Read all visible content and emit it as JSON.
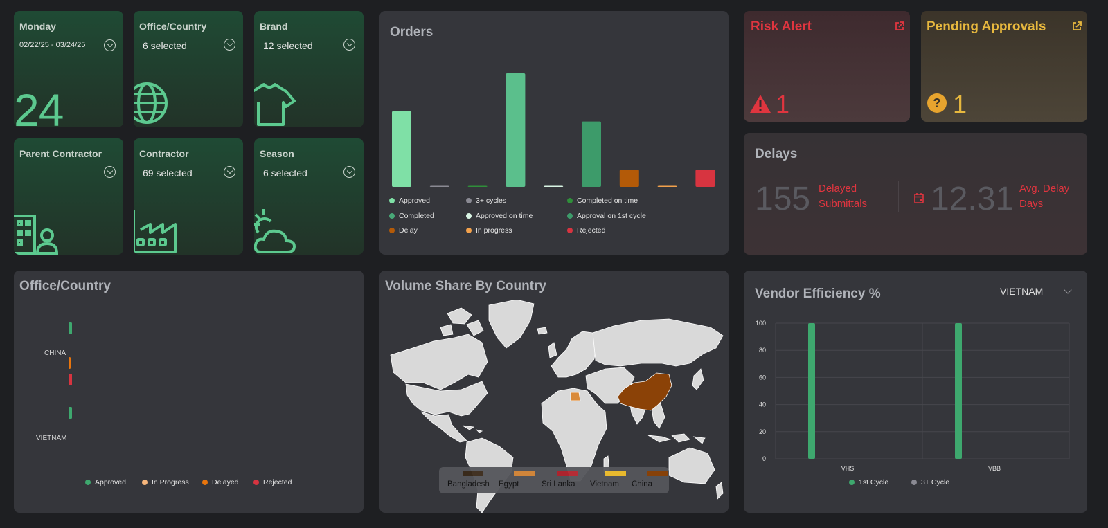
{
  "filters": {
    "date": {
      "title": "Monday",
      "value": "02/22/25 - 03/24/25",
      "big_number": "24"
    },
    "office": {
      "title": "Office/Country",
      "value": "6 selected"
    },
    "brand": {
      "title": "Brand",
      "value": "12 selected"
    },
    "parent": {
      "title": "Parent Contractor",
      "value": ""
    },
    "contractor": {
      "title": "Contractor",
      "value": "69 selected"
    },
    "season": {
      "title": "Season",
      "value": "6 selected"
    }
  },
  "orders": {
    "title": "Orders",
    "legend": [
      {
        "label": "Approved",
        "color": "#7fe0a6"
      },
      {
        "label": "3+ cycles",
        "color": "#8a8a93"
      },
      {
        "label": "Completed on time",
        "color": "#2f8f3a"
      },
      {
        "label": "Completed",
        "color": "#48a877"
      },
      {
        "label": "Approved on time",
        "color": "#d9f5e4"
      },
      {
        "label": "Approval on 1st cycle",
        "color": "#3d9b6a"
      },
      {
        "label": "Delay",
        "color": "#b35a08"
      },
      {
        "label": "In progress",
        "color": "#f2a14c"
      },
      {
        "label": "Rejected",
        "color": "#d73440"
      }
    ]
  },
  "risk_alert": {
    "title": "Risk Alert",
    "count": "1",
    "color": "#e0353f"
  },
  "pending_approvals": {
    "title": "Pending Approvals",
    "count": "1",
    "color": "#e7b83e"
  },
  "delays": {
    "title": "Delays",
    "submittals_value": "155",
    "submittals_label_1": "Delayed",
    "submittals_label_2": "Submittals",
    "avg_value": "12.31",
    "avg_label_1": "Avg. Delay",
    "avg_label_2": "Days"
  },
  "office_country": {
    "title": "Office/Country",
    "categories": [
      "CHINA",
      "VIETNAM"
    ],
    "legend": [
      {
        "label": "Approved",
        "color": "#3ea86e"
      },
      {
        "label": "In Progress",
        "color": "#f6b67c"
      },
      {
        "label": "Delayed",
        "color": "#e8750d"
      },
      {
        "label": "Rejected",
        "color": "#d73440"
      }
    ]
  },
  "volume_share": {
    "title": "Volume Share By Country",
    "legend": [
      {
        "label": "Bangladesh",
        "color": "#3a2a1a"
      },
      {
        "label": "Egypt",
        "color": "#d98a3a"
      },
      {
        "label": "Sri Lanka",
        "color": "#b3242e"
      },
      {
        "label": "Vietnam",
        "color": "#f2c12e"
      },
      {
        "label": "China",
        "color": "#8b4207"
      }
    ]
  },
  "vendor_efficiency": {
    "title": "Vendor Efficiency %",
    "selected_country": "VIETNAM"
  },
  "chart_data": [
    {
      "type": "bar",
      "title": "Orders",
      "categories": [
        "Approved",
        "3+ cycles",
        "Completed on time",
        "Completed",
        "Approved on time",
        "Approval on 1st cycle",
        "Delay",
        "In progress",
        "Rejected"
      ],
      "values": [
        110,
        1,
        1,
        165,
        1,
        95,
        25,
        1,
        25
      ],
      "colors": [
        "#7fe0a6",
        "#8a8a93",
        "#2f8f3a",
        "#5bbf8c",
        "#d9f5e4",
        "#3d9b6a",
        "#b35a08",
        "#f2a14c",
        "#d73440"
      ]
    },
    {
      "type": "bar",
      "title": "Office/Country",
      "categories": [
        "CHINA",
        "VIETNAM"
      ],
      "series": [
        {
          "name": "Approved",
          "values": [
            1,
            1
          ]
        },
        {
          "name": "In Progress",
          "values": [
            0,
            0
          ]
        },
        {
          "name": "Delayed",
          "values": [
            1,
            0
          ]
        },
        {
          "name": "Rejected",
          "values": [
            1,
            0
          ]
        }
      ]
    },
    {
      "type": "bar",
      "title": "Vendor Efficiency %",
      "categories": [
        "VHS",
        "VBB"
      ],
      "series": [
        {
          "name": "1st Cycle",
          "values": [
            100,
            100
          ],
          "color": "#3ea86e"
        },
        {
          "name": "3+ Cycle",
          "values": [
            0,
            0
          ],
          "color": "#8a8a93"
        }
      ],
      "yticks": [
        "0",
        "20",
        "40",
        "60",
        "80",
        "100"
      ],
      "ylim": [
        0,
        100
      ]
    }
  ]
}
